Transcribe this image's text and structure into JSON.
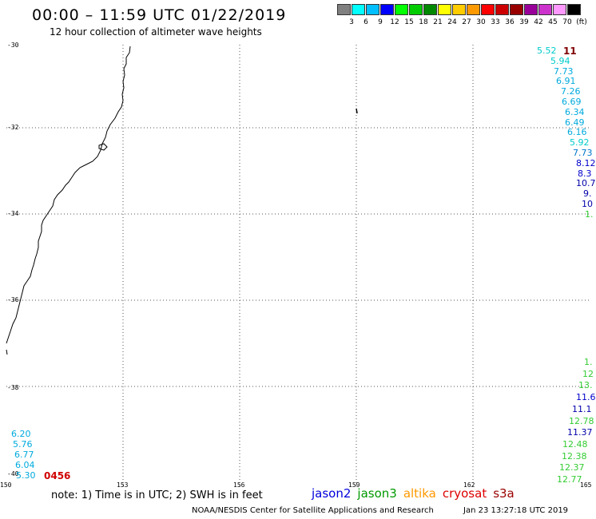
{
  "header": {
    "title": "00:00 – 11:59 UTC 01/22/2019",
    "subtitle": "12 hour collection of altimeter wave heights"
  },
  "colorbar": {
    "colors": [
      "#808080",
      "#00ffff",
      "#00bfff",
      "#0000ff",
      "#00ff00",
      "#00cc00",
      "#008800",
      "#ffff00",
      "#ffcc00",
      "#ff9900",
      "#ff0000",
      "#cc0000",
      "#990000",
      "#990099",
      "#cc33cc",
      "#ff99ff",
      "#000000"
    ],
    "labels": [
      "3",
      "6",
      "9",
      "12",
      "15",
      "18",
      "21",
      "24",
      "27",
      "30",
      "33",
      "36",
      "39",
      "42",
      "45",
      "70",
      "(ft)"
    ]
  },
  "axes": {
    "lat_labels": [
      "-30",
      "-32",
      "-34",
      "-36",
      "-38",
      "-40"
    ],
    "lon_labels": [
      "150",
      "153",
      "156",
      "159",
      "162",
      "165"
    ]
  },
  "wave_heights": {
    "right_upper": [
      "5.52",
      "5.94",
      "7.73",
      "6.91",
      "7.26",
      "6.69",
      "6.34",
      "6.49",
      "6.16",
      "5.92",
      "7.73",
      "8.12",
      "8.3",
      "10.7",
      "9.",
      "10",
      "1."
    ],
    "right_lower": [
      "1.",
      "12",
      "13.",
      "11.6",
      "11.1",
      "12.78",
      "11.37",
      "12.48",
      "12.38",
      "12.37",
      "12.77"
    ],
    "left_lower": [
      "6.20",
      "5.76",
      "6.77",
      "6.04",
      "5.30"
    ],
    "top_right_value": "11",
    "count": "0456"
  },
  "footer": {
    "note": "note: 1) Time is in UTC; 2) SWH is in feet",
    "legend": [
      {
        "name": "jason2",
        "color": "#0000dd"
      },
      {
        "name": "jason3",
        "color": "#009900"
      },
      {
        "name": "altika",
        "color": "#ff9900"
      },
      {
        "name": "cryosat",
        "color": "#dd0000"
      },
      {
        "name": "s3a",
        "color": "#990000"
      }
    ],
    "credit": "NOAA/NESDIS Center for Satellite Applications and Research",
    "timestamp": "Jan 23 13:27:18 UTC 2019"
  }
}
